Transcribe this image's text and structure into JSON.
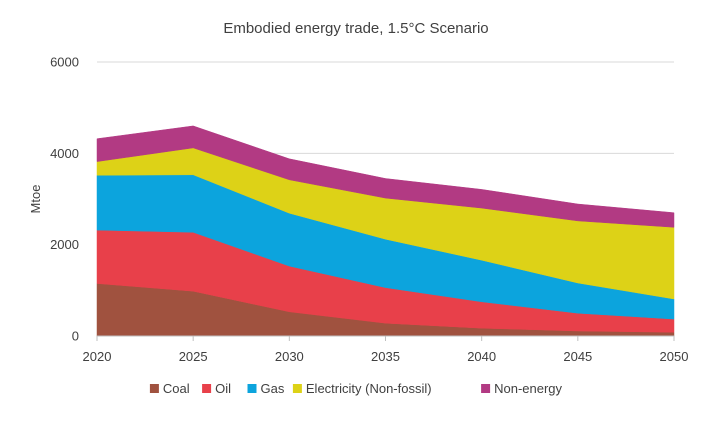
{
  "chart_data": {
    "type": "area",
    "stacked": true,
    "title": "Embodied energy trade, 1.5°C Scenario",
    "xlabel": "",
    "ylabel": "Mtoe",
    "x": [
      2020,
      2025,
      2030,
      2035,
      2040,
      2045,
      2050
    ],
    "ylim": [
      0,
      6000
    ],
    "yticks": [
      0,
      2000,
      4000,
      6000
    ],
    "grid": true,
    "legend_position": "bottom",
    "series": [
      {
        "name": "Coal",
        "color": "#A0523F",
        "values": [
          1150,
          980,
          530,
          280,
          170,
          110,
          80
        ]
      },
      {
        "name": "Oil",
        "color": "#E8404A",
        "values": [
          1170,
          1290,
          1000,
          780,
          580,
          390,
          290
        ]
      },
      {
        "name": "Gas",
        "color": "#0CA4DD",
        "values": [
          1200,
          1260,
          1160,
          1060,
          910,
          660,
          440
        ]
      },
      {
        "name": "Electricity (Non-fossil)",
        "color": "#DDD217",
        "values": [
          300,
          590,
          730,
          900,
          1140,
          1360,
          1570
        ]
      },
      {
        "name": "Non-energy",
        "color": "#B23A83",
        "values": [
          500,
          480,
          460,
          430,
          410,
          370,
          320
        ]
      }
    ]
  }
}
